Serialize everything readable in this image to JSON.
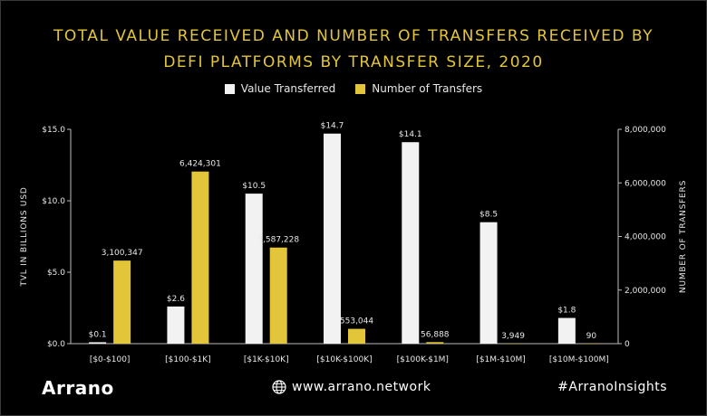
{
  "title_line1": "TOTAL VALUE RECEIVED AND NUMBER OF TRANSFERS RECEIVED BY",
  "title_line2": "DEFI PLATFORMS BY TRANSFER SIZE, 2020",
  "legend": [
    {
      "label": "Value Transferred",
      "color": "#f2f2f2"
    },
    {
      "label": "Number of Transfers",
      "color": "#e3c53a"
    }
  ],
  "footer": {
    "brand": "Arrano",
    "website": "www.arrano.network",
    "hashtag": "#ArranoInsights"
  },
  "chart_data": {
    "type": "bar",
    "categories": [
      "[$0-$100]",
      "[$100-$1K]",
      "[$1K-$10K]",
      "[$10K-$100K]",
      "[$100K-$1M]",
      "[$1M-$10M]",
      "[$10M-$100M]"
    ],
    "series": [
      {
        "name": "Value Transferred",
        "axis": "left",
        "color": "#f2f2f2",
        "values": [
          0.1,
          2.6,
          10.5,
          14.7,
          14.1,
          8.5,
          1.8
        ],
        "labels": [
          "$0.1",
          "$2.6",
          "$10.5",
          "$14.7",
          "$14.1",
          "$8.5",
          "$1.8"
        ]
      },
      {
        "name": "Number of Transfers",
        "axis": "right",
        "color": "#e3c53a",
        "values": [
          3100347,
          6424301,
          3587228,
          553044,
          56888,
          3949,
          90
        ],
        "labels": [
          "3,100,347",
          "6,424,301",
          "3,587,228",
          "553,044",
          "56,888",
          "3,949",
          "90"
        ]
      }
    ],
    "ylabel_left": "TVL IN BILLIONS USD",
    "ylabel_right": "NUMBER OF TRANSFERS",
    "ylim_left": [
      0,
      15
    ],
    "ylim_right": [
      0,
      8000000
    ],
    "yticks_left": [
      "$0.0",
      "$5.0",
      "$10.0",
      "$15.0"
    ],
    "yticks_right": [
      "0",
      "2,000,000",
      "4,000,000",
      "6,000,000",
      "8,000,000"
    ],
    "grid": false,
    "legend_position": "top-center"
  }
}
